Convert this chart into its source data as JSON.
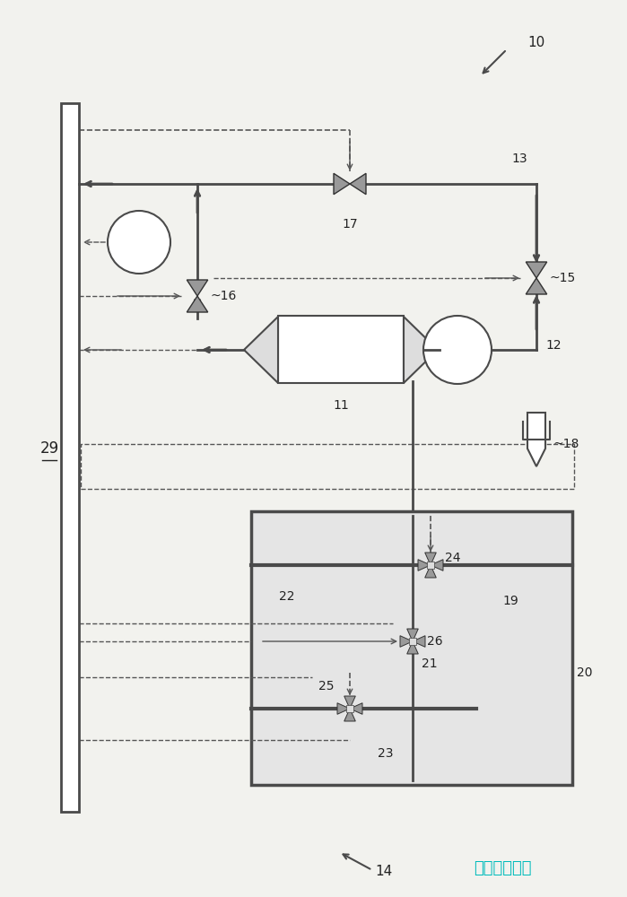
{
  "bg_color": "#f2f2ee",
  "line_color": "#4a4a4a",
  "dashed_color": "#555555",
  "text_color": "#222222",
  "valve_fill": "#999999",
  "white": "#ffffff",
  "light_gray": "#dddddd",
  "tank_fill": "#e5e5e5",
  "watermark_color": "#00bbbb",
  "watermark_text": "彩虹网址导航"
}
